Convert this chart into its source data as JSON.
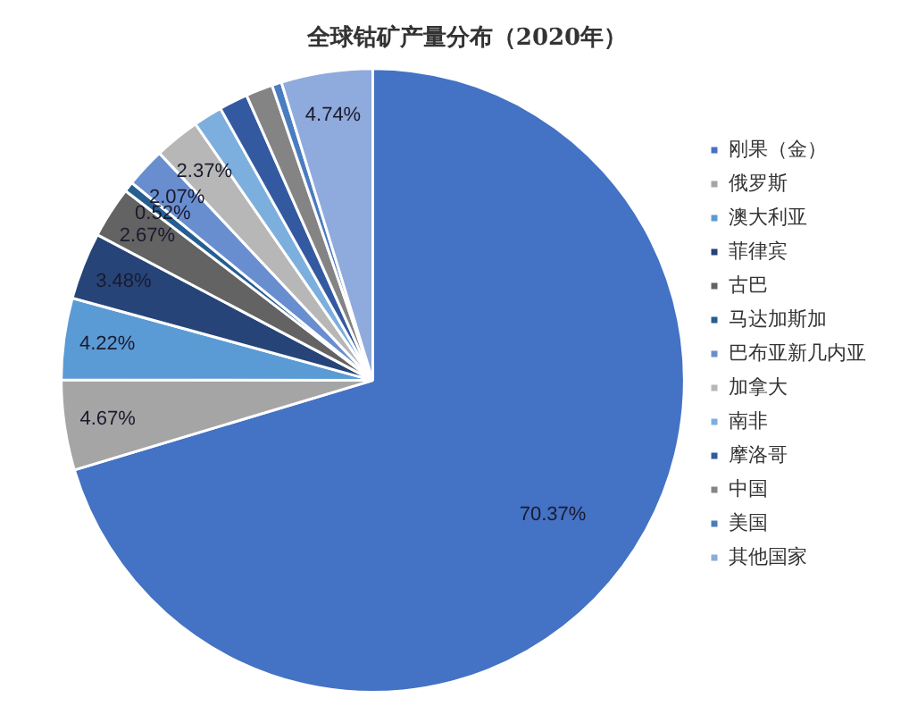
{
  "chart_data": {
    "type": "pie",
    "title": "全球钴矿产量分布（2020年）",
    "categories": [
      "刚果（金）",
      "俄罗斯",
      "澳大利亚",
      "菲律宾",
      "古巴",
      "马达加斯加",
      "巴布亚新几内亚",
      "加拿大",
      "南非",
      "摩洛哥",
      "中国",
      "美国",
      "其他国家"
    ],
    "values": [
      70.37,
      4.67,
      4.22,
      3.48,
      2.67,
      0.52,
      2.07,
      2.37,
      1.5,
      1.5,
      1.4,
      0.5,
      4.74
    ],
    "colors": [
      "#4472c4",
      "#a5a5a5",
      "#5b9bd5",
      "#264478",
      "#636363",
      "#255e91",
      "#698ed0",
      "#b7b7b7",
      "#7cafdd",
      "#335aa1",
      "#848484",
      "#4a7cc0",
      "#8faadc"
    ],
    "value_labels": [
      "70.37%",
      "4.67%",
      "4.22%",
      "3.48%",
      "2.67%",
      "0.52%",
      "2.07%",
      "2.37%",
      null,
      null,
      null,
      null,
      "4.74%"
    ],
    "legend": "right"
  }
}
